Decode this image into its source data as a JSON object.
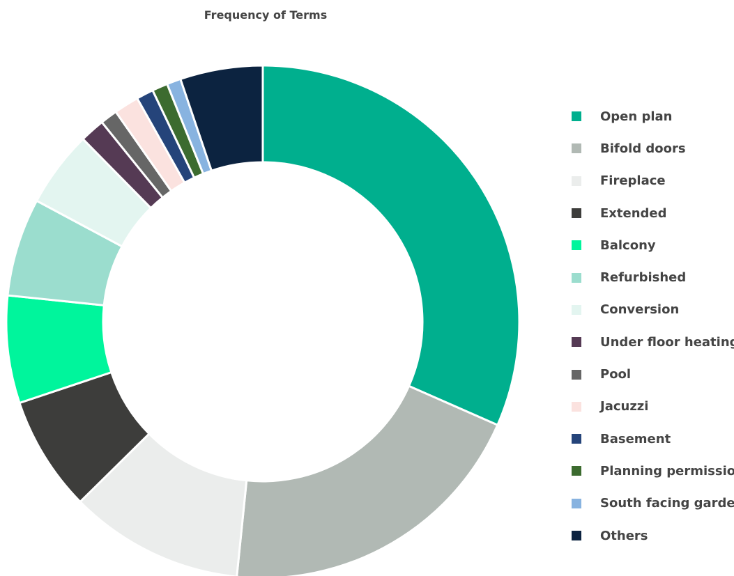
{
  "chart_data": {
    "type": "pie",
    "title": "Frequency of Terms",
    "donut": true,
    "legend_position": "right",
    "categories": [
      "Open plan",
      "Bifold doors",
      "Fireplace",
      "Extended",
      "Balcony",
      "Refurbished",
      "Conversion",
      "Under floor heating",
      "Pool",
      "Jacuzzi",
      "Basement",
      "Planning permission",
      "South facing garden",
      "Others"
    ],
    "values": [
      32.2,
      20.4,
      11.2,
      7.4,
      6.9,
      6.3,
      4.9,
      1.6,
      1.1,
      1.6,
      1.1,
      1.0,
      0.9,
      5.3
    ],
    "colors": [
      "#00AF8E",
      "#B1B9B4",
      "#EBEDEC",
      "#3D3D3B",
      "#00F59C",
      "#9BDDCE",
      "#E3F5F0",
      "#553A54",
      "#666666",
      "#FBE2DF",
      "#25447A",
      "#3C6B2F",
      "#88B3E0",
      "#0C2340"
    ]
  }
}
